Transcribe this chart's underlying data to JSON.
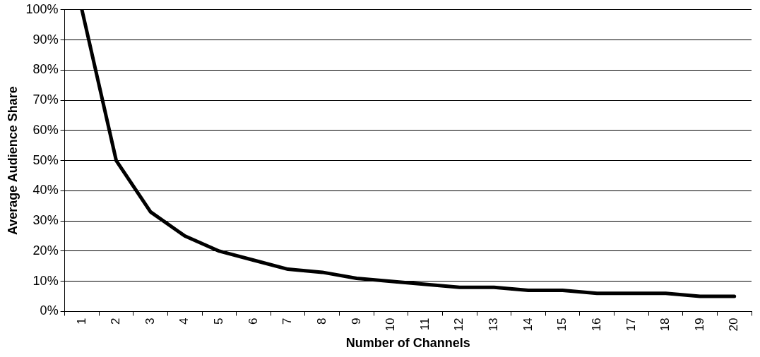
{
  "chart_data": {
    "type": "line",
    "xlabel": "Number of Channels",
    "ylabel": "Average Audience Share",
    "categories": [
      "1",
      "2",
      "3",
      "4",
      "5",
      "6",
      "7",
      "8",
      "9",
      "10",
      "11",
      "12",
      "13",
      "14",
      "15",
      "16",
      "17",
      "18",
      "19",
      "20"
    ],
    "series": [
      {
        "color": "#000000",
        "values": [
          100,
          50,
          33,
          25,
          20,
          17,
          14,
          13,
          11,
          10,
          9,
          8,
          8,
          7,
          7,
          6,
          6,
          6,
          5,
          5
        ]
      }
    ],
    "ylim": [
      0,
      100
    ],
    "yticks": [
      {
        "value": 0,
        "label": "0%"
      },
      {
        "value": 10,
        "label": "10%"
      },
      {
        "value": 20,
        "label": "20%"
      },
      {
        "value": 30,
        "label": "30%"
      },
      {
        "value": 40,
        "label": "40%"
      },
      {
        "value": 50,
        "label": "50%"
      },
      {
        "value": 60,
        "label": "60%"
      },
      {
        "value": 70,
        "label": "70%"
      },
      {
        "value": 80,
        "label": "80%"
      },
      {
        "value": 90,
        "label": "90%"
      },
      {
        "value": 100,
        "label": "100%"
      }
    ],
    "grid": "y",
    "legend": false,
    "marker": "none",
    "line_style": "solid"
  }
}
